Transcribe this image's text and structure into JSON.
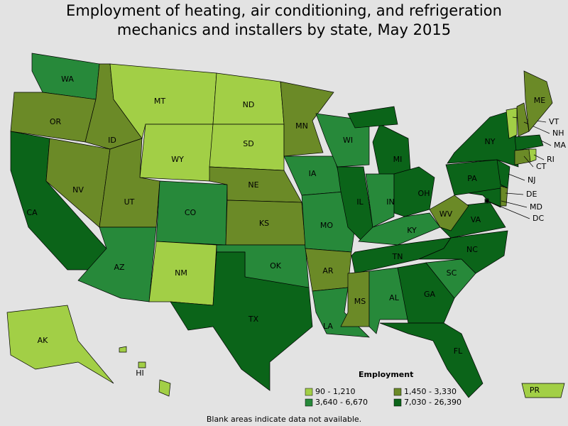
{
  "title": "Employment of heating, air conditioning, and refrigeration mechanics and installers by state, May 2015",
  "legend": {
    "title": "Employment",
    "items": [
      {
        "label": "90 - 1,210",
        "color": "#a2cf46"
      },
      {
        "label": "1,450 - 3,330",
        "color": "#6b8a27"
      },
      {
        "label": "3,640 - 6,670",
        "color": "#27893a"
      },
      {
        "label": "7,030 - 26,390",
        "color": "#0b6419"
      }
    ]
  },
  "states": [
    {
      "label": "WA",
      "color": "#27893a"
    },
    {
      "label": "OR",
      "color": "#6b8a27"
    },
    {
      "label": "CA",
      "color": "#0b6419"
    },
    {
      "label": "NV",
      "color": "#6b8a27"
    },
    {
      "label": "ID",
      "color": "#6b8a27"
    },
    {
      "label": "MT",
      "color": "#a2cf46"
    },
    {
      "label": "WY",
      "color": "#a2cf46"
    },
    {
      "label": "UT",
      "color": "#6b8a27"
    },
    {
      "label": "AZ",
      "color": "#27893a"
    },
    {
      "label": "CO",
      "color": "#27893a"
    },
    {
      "label": "NM",
      "color": "#a2cf46"
    },
    {
      "label": "ND",
      "color": "#a2cf46"
    },
    {
      "label": "SD",
      "color": "#a2cf46"
    },
    {
      "label": "NE",
      "color": "#6b8a27"
    },
    {
      "label": "KS",
      "color": "#6b8a27"
    },
    {
      "label": "OK",
      "color": "#27893a"
    },
    {
      "label": "TX",
      "color": "#0b6419"
    },
    {
      "label": "MN",
      "color": "#6b8a27"
    },
    {
      "label": "IA",
      "color": "#27893a"
    },
    {
      "label": "MO",
      "color": "#27893a"
    },
    {
      "label": "AR",
      "color": "#6b8a27"
    },
    {
      "label": "LA",
      "color": "#27893a"
    },
    {
      "label": "WI",
      "color": "#27893a"
    },
    {
      "label": "IL",
      "color": "#0b6419"
    },
    {
      "label": "MI",
      "color": "#0b6419"
    },
    {
      "label": "IN",
      "color": "#27893a"
    },
    {
      "label": "OH",
      "color": "#0b6419"
    },
    {
      "label": "KY",
      "color": "#27893a"
    },
    {
      "label": "TN",
      "color": "#0b6419"
    },
    {
      "label": "MS",
      "color": "#6b8a27"
    },
    {
      "label": "AL",
      "color": "#27893a"
    },
    {
      "label": "GA",
      "color": "#0b6419"
    },
    {
      "label": "FL",
      "color": "#0b6419"
    },
    {
      "label": "SC",
      "color": "#27893a"
    },
    {
      "label": "NC",
      "color": "#0b6419"
    },
    {
      "label": "VA",
      "color": "#0b6419"
    },
    {
      "label": "WV",
      "color": "#6b8a27"
    },
    {
      "label": "PA",
      "color": "#0b6419"
    },
    {
      "label": "NY",
      "color": "#0b6419"
    },
    {
      "label": "VT",
      "color": "#a2cf46"
    },
    {
      "label": "NH",
      "color": "#6b8a27"
    },
    {
      "label": "ME",
      "color": "#6b8a27"
    },
    {
      "label": "MA",
      "color": "#0b6419"
    },
    {
      "label": "CT",
      "color": "#6b8a27"
    },
    {
      "label": "RI",
      "color": "#a2cf46"
    },
    {
      "label": "NJ",
      "color": "#0b6419"
    },
    {
      "label": "DE",
      "color": "#6b8a27"
    },
    {
      "label": "MD",
      "color": "#0b6419"
    },
    {
      "label": "DC",
      "color": "#27893a"
    },
    {
      "label": "AK",
      "color": "#a2cf46"
    },
    {
      "label": "HI",
      "color": "#a2cf46"
    },
    {
      "label": "PR",
      "color": "#a2cf46"
    }
  ],
  "note": "Blank areas indicate data not available."
}
